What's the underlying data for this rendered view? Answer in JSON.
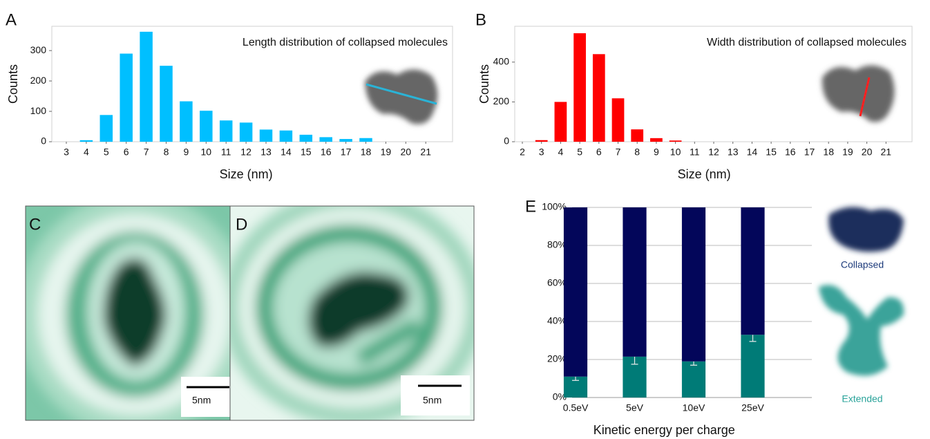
{
  "chart_data": [
    {
      "type": "bar",
      "panel_label": "A",
      "title": "Length distribution of collapsed molecules",
      "xlabel": "Size (nm)",
      "ylabel": "Counts",
      "categories": [
        "3",
        "4",
        "5",
        "6",
        "7",
        "8",
        "9",
        "10",
        "11",
        "12",
        "13",
        "14",
        "15",
        "16",
        "17",
        "18",
        "19",
        "20",
        "21"
      ],
      "values": [
        0,
        5,
        88,
        290,
        362,
        250,
        133,
        102,
        70,
        63,
        40,
        37,
        23,
        15,
        9,
        12,
        0,
        0,
        0
      ],
      "color": "#00bfff",
      "ylim": [
        0,
        380
      ],
      "yticks": [
        0,
        100,
        200,
        300
      ],
      "grid": false
    },
    {
      "type": "bar",
      "panel_label": "B",
      "title": "Width distribution of collapsed molecules",
      "xlabel": "Size (nm)",
      "ylabel": "Counts",
      "categories": [
        "2",
        "3",
        "4",
        "5",
        "6",
        "7",
        "8",
        "9",
        "10",
        "11",
        "12",
        "13",
        "14",
        "15",
        "16",
        "17",
        "18",
        "19",
        "20",
        "21"
      ],
      "values": [
        0,
        8,
        200,
        545,
        440,
        218,
        62,
        18,
        6,
        0,
        0,
        0,
        0,
        0,
        0,
        0,
        0,
        0,
        0,
        0
      ],
      "color": "#ff0000",
      "ylim": [
        0,
        580
      ],
      "yticks": [
        0,
        200,
        400
      ],
      "grid": false
    },
    {
      "type": "stacked_bar",
      "panel_label": "E",
      "xlabel": "Kinetic energy per charge",
      "categories": [
        "0.5eV",
        "5eV",
        "10eV",
        "25eV"
      ],
      "series": [
        {
          "name": "Extended",
          "color": "#007b77",
          "values": [
            11,
            21.5,
            19,
            33
          ],
          "errors": [
            2,
            4,
            2,
            3.5
          ]
        },
        {
          "name": "Collapsed",
          "color": "#03065a",
          "values": [
            89,
            78.5,
            81,
            67
          ]
        }
      ],
      "ylim": [
        0,
        100
      ],
      "yticks": [
        {
          "value": 0,
          "label": "0%"
        },
        {
          "value": 20,
          "label": "20%"
        },
        {
          "value": 40,
          "label": "40%"
        },
        {
          "value": 60,
          "label": "60%"
        },
        {
          "value": 80,
          "label": "80%"
        },
        {
          "value": 100,
          "label": "100%"
        }
      ],
      "grid": true
    }
  ],
  "images": [
    {
      "panel_label": "C",
      "scale_bar": "5nm"
    },
    {
      "panel_label": "D",
      "scale_bar": "5nm"
    }
  ]
}
